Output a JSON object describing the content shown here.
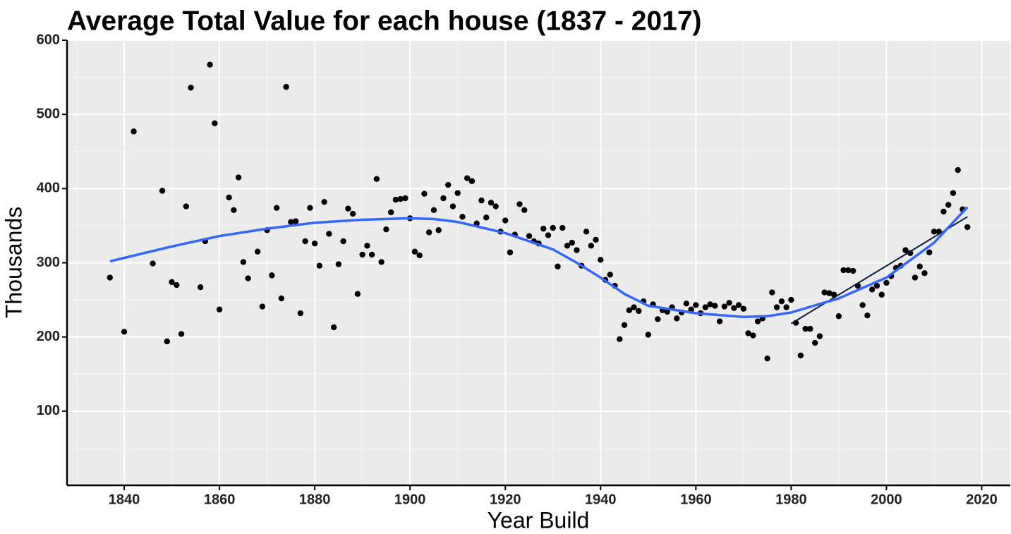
{
  "chart_data": {
    "type": "scatter",
    "title": "Average Total Value for each house (1837 - 2017)",
    "xlabel": "Year Build",
    "ylabel": "Thousands",
    "xlim": [
      1828,
      2026
    ],
    "ylim": [
      0,
      600
    ],
    "xticks": [
      1840,
      1860,
      1880,
      1900,
      1920,
      1940,
      1960,
      1980,
      2000,
      2020
    ],
    "yticks": [
      100,
      200,
      300,
      400,
      500,
      600
    ],
    "xminor": [
      1830,
      1850,
      1870,
      1890,
      1910,
      1930,
      1950,
      1970,
      1990,
      2010
    ],
    "yminor": [
      50,
      150,
      250,
      350,
      450,
      550
    ],
    "grid": true,
    "points": {
      "color": "#000000",
      "x": [
        1837,
        1840,
        1842,
        1846,
        1848,
        1849,
        1850,
        1851,
        1852,
        1853,
        1854,
        1856,
        1857,
        1858,
        1859,
        1860,
        1862,
        1863,
        1864,
        1865,
        1866,
        1868,
        1869,
        1870,
        1871,
        1872,
        1873,
        1874,
        1875,
        1876,
        1877,
        1878,
        1879,
        1880,
        1881,
        1882,
        1883,
        1884,
        1885,
        1886,
        1887,
        1888,
        1889,
        1890,
        1891,
        1892,
        1893,
        1894,
        1895,
        1896,
        1897,
        1898,
        1899,
        1900,
        1901,
        1902,
        1903,
        1904,
        1905,
        1906,
        1907,
        1908,
        1909,
        1910,
        1911,
        1912,
        1913,
        1914,
        1915,
        1916,
        1917,
        1918,
        1919,
        1920,
        1921,
        1922,
        1923,
        1924,
        1925,
        1926,
        1927,
        1928,
        1929,
        1930,
        1931,
        1932,
        1933,
        1934,
        1935,
        1936,
        1937,
        1938,
        1939,
        1940,
        1941,
        1942,
        1943,
        1944,
        1945,
        1946,
        1947,
        1948,
        1949,
        1950,
        1951,
        1952,
        1953,
        1954,
        1955,
        1956,
        1957,
        1958,
        1959,
        1960,
        1961,
        1962,
        1963,
        1964,
        1965,
        1966,
        1967,
        1968,
        1969,
        1970,
        1971,
        1972,
        1973,
        1974,
        1975,
        1976,
        1977,
        1978,
        1979,
        1980,
        1981,
        1982,
        1983,
        1984,
        1985,
        1986,
        1987,
        1988,
        1989,
        1990,
        1991,
        1992,
        1993,
        1994,
        1995,
        1996,
        1997,
        1998,
        1999,
        2000,
        2001,
        2002,
        2003,
        2004,
        2005,
        2006,
        2007,
        2008,
        2009,
        2010,
        2011,
        2012,
        2013,
        2014,
        2015,
        2016,
        2017
      ],
      "values": [
        280,
        207,
        477,
        299,
        397,
        194,
        274,
        270,
        204,
        376,
        536,
        267,
        329,
        567,
        488,
        237,
        388,
        371,
        415,
        301,
        279,
        315,
        241,
        344,
        283,
        374,
        252,
        537,
        355,
        356,
        232,
        329,
        374,
        326,
        296,
        382,
        339,
        213,
        298,
        329,
        373,
        366,
        258,
        311,
        323,
        311,
        413,
        301,
        345,
        368,
        385,
        386,
        387,
        360,
        315,
        310,
        393,
        341,
        371,
        344,
        387,
        405,
        376,
        394,
        362,
        414,
        410,
        353,
        384,
        361,
        381,
        376,
        342,
        357,
        314,
        338,
        379,
        371,
        336,
        329,
        326,
        346,
        337,
        347,
        295,
        347,
        323,
        327,
        317,
        296,
        342,
        323,
        331,
        304,
        277,
        284,
        269,
        197,
        216,
        236,
        240,
        235,
        248,
        203,
        244,
        224,
        236,
        234,
        240,
        225,
        233,
        245,
        237,
        243,
        232,
        240,
        244,
        242,
        221,
        241,
        246,
        239,
        243,
        238,
        205,
        202,
        221,
        225,
        171,
        260,
        240,
        248,
        240,
        250,
        219,
        175,
        211,
        211,
        192,
        201,
        260,
        259,
        257,
        228,
        290,
        290,
        289,
        269,
        243,
        229,
        264,
        269,
        257,
        273,
        282,
        293,
        296,
        317,
        313,
        280,
        295,
        286,
        314,
        342,
        342,
        369,
        378,
        394,
        425,
        372,
        348
      ]
    },
    "smooth": {
      "color": "#3366ff",
      "x": [
        1837,
        1850,
        1860,
        1870,
        1880,
        1890,
        1900,
        1905,
        1910,
        1920,
        1930,
        1935,
        1940,
        1945,
        1950,
        1960,
        1970,
        1975,
        1980,
        1990,
        2000,
        2010,
        2017
      ],
      "values": [
        302,
        322,
        336,
        346,
        354,
        358,
        360,
        359,
        355,
        340,
        318,
        300,
        280,
        258,
        242,
        232,
        227,
        228,
        233,
        252,
        280,
        327,
        375
      ]
    },
    "fit": {
      "color": "#0a1a3a",
      "x": [
        1980,
        2017
      ],
      "values": [
        218,
        362
      ]
    }
  }
}
